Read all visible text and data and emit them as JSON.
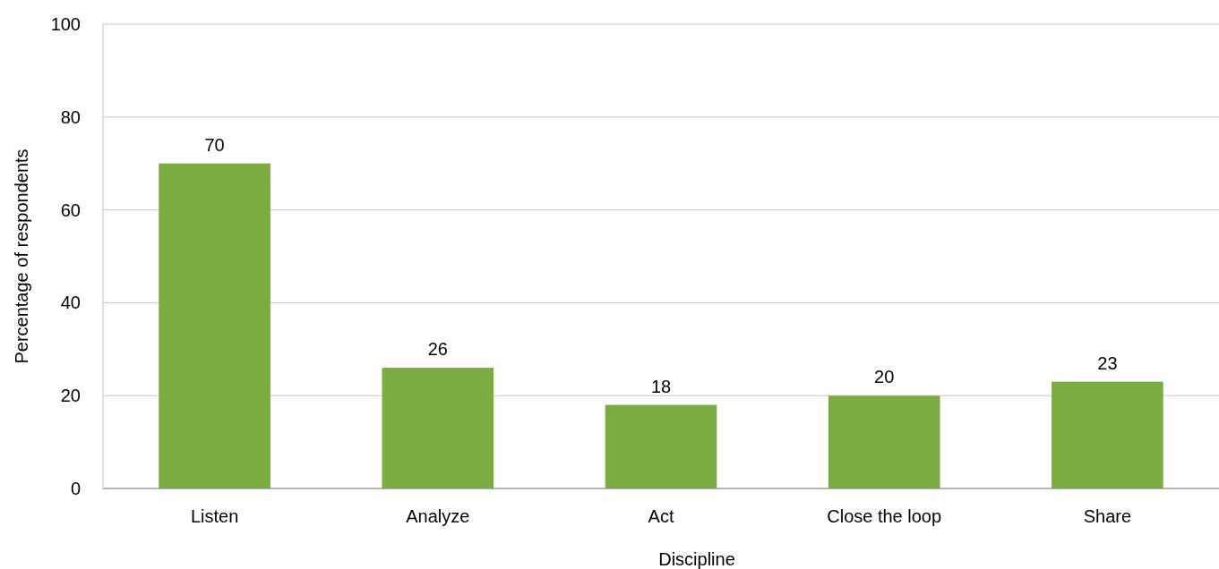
{
  "chart_data": {
    "type": "bar",
    "xlabel": "Discipline",
    "ylabel": "Percentage of respondents",
    "categories": [
      "Listen",
      "Analyze",
      "Act",
      "Close the loop",
      "Share"
    ],
    "values": [
      70,
      26,
      18,
      20,
      23
    ],
    "color": "#7aac41",
    "ylim": [
      0,
      100
    ],
    "yticks": [
      0,
      20,
      40,
      60,
      80,
      100
    ],
    "grid": "y",
    "data_labels": true
  }
}
